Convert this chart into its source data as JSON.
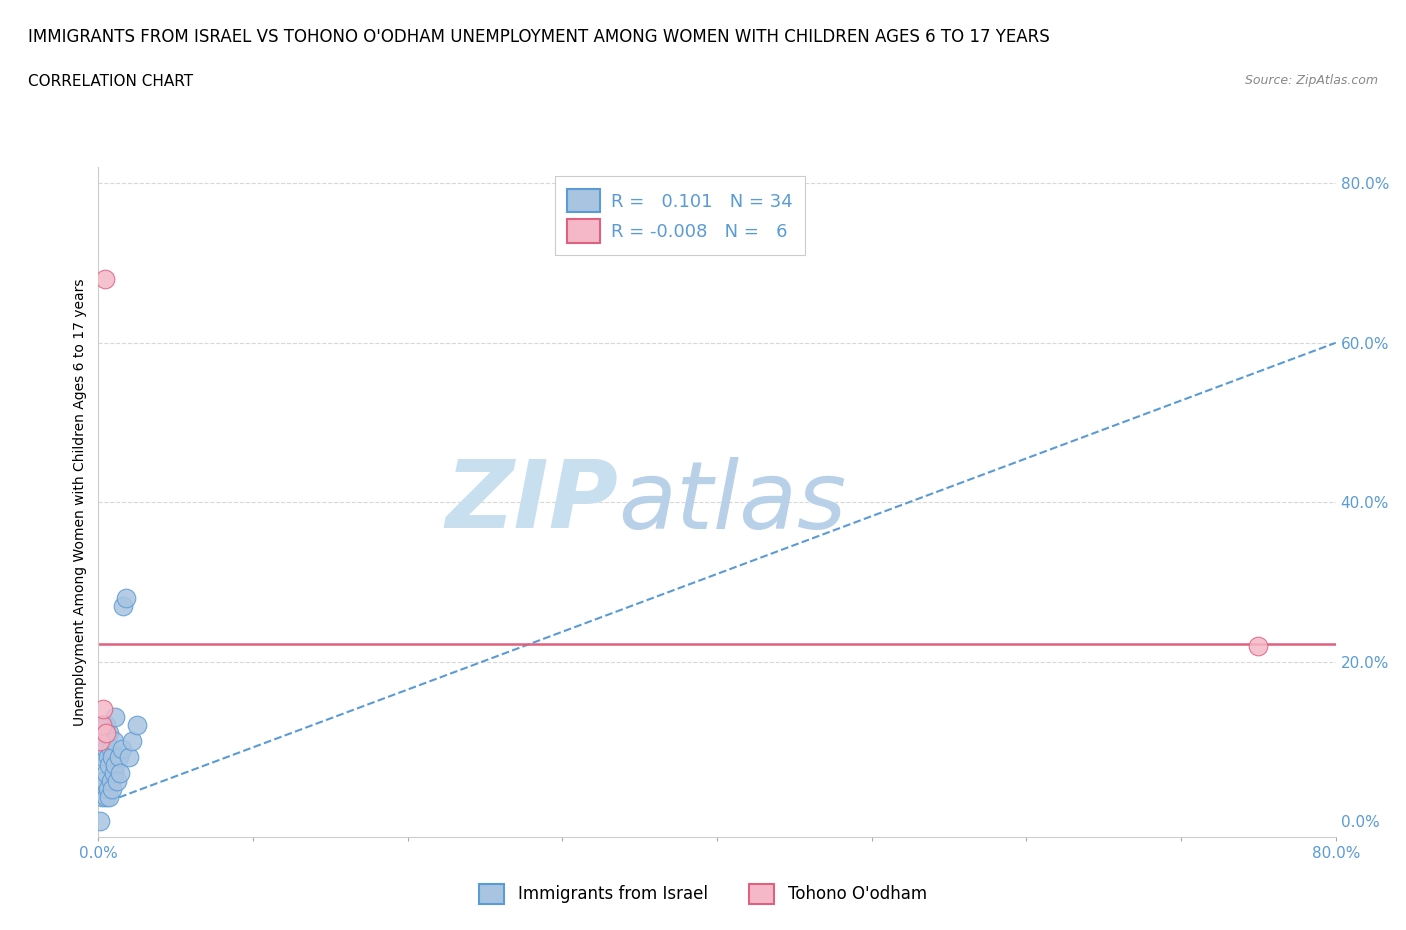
{
  "title": "IMMIGRANTS FROM ISRAEL VS TOHONO O'ODHAM UNEMPLOYMENT AMONG WOMEN WITH CHILDREN AGES 6 TO 17 YEARS",
  "subtitle": "CORRELATION CHART",
  "source": "Source: ZipAtlas.com",
  "ylabel": "Unemployment Among Women with Children Ages 6 to 17 years",
  "xlim": [
    0.0,
    0.8
  ],
  "ylim": [
    -0.02,
    0.82
  ],
  "xticks": [
    0.0,
    0.1,
    0.2,
    0.3,
    0.4,
    0.5,
    0.6,
    0.7,
    0.8
  ],
  "yticks": [
    0.0,
    0.2,
    0.4,
    0.6,
    0.8
  ],
  "ytick_labels": [
    "0.0%",
    "20.0%",
    "40.0%",
    "60.0%",
    "80.0%"
  ],
  "xtick_labels": [
    "0.0%",
    "",
    "",
    "",
    "",
    "",
    "",
    "",
    "80.0%"
  ],
  "blue_R": 0.101,
  "blue_N": 34,
  "pink_R": -0.008,
  "pink_N": 6,
  "blue_color": "#a8c4e0",
  "blue_edge_color": "#5b9bd5",
  "pink_color": "#f4b8c8",
  "pink_edge_color": "#e06080",
  "blue_scatter_x": [
    0.001,
    0.002,
    0.002,
    0.003,
    0.003,
    0.003,
    0.004,
    0.004,
    0.005,
    0.005,
    0.005,
    0.005,
    0.006,
    0.006,
    0.007,
    0.007,
    0.007,
    0.008,
    0.008,
    0.009,
    0.009,
    0.01,
    0.01,
    0.011,
    0.011,
    0.012,
    0.013,
    0.014,
    0.015,
    0.016,
    0.018,
    0.02,
    0.022,
    0.025
  ],
  "blue_scatter_y": [
    0.0,
    0.03,
    0.05,
    0.08,
    0.1,
    0.12,
    0.05,
    0.1,
    0.03,
    0.06,
    0.09,
    0.12,
    0.04,
    0.08,
    0.03,
    0.07,
    0.11,
    0.05,
    0.09,
    0.04,
    0.08,
    0.06,
    0.1,
    0.07,
    0.13,
    0.05,
    0.08,
    0.06,
    0.09,
    0.27,
    0.28,
    0.08,
    0.1,
    0.12
  ],
  "pink_scatter_x": [
    0.001,
    0.002,
    0.003,
    0.004,
    0.005,
    0.75
  ],
  "pink_scatter_y": [
    0.1,
    0.12,
    0.14,
    0.68,
    0.11,
    0.22
  ],
  "watermark_line1": "ZIP",
  "watermark_line2": "atlas",
  "watermark_color1": "#c8dff0",
  "watermark_color2": "#b8d0e8",
  "blue_trend_x": [
    0.0,
    0.8
  ],
  "blue_trend_y_start": 0.02,
  "blue_trend_y_end": 0.6,
  "pink_trend_y": 0.222,
  "grid_color": "#d8d8d8",
  "title_fontsize": 12,
  "subtitle_fontsize": 11,
  "axis_label_fontsize": 10,
  "tick_fontsize": 11,
  "legend_fontsize": 13
}
